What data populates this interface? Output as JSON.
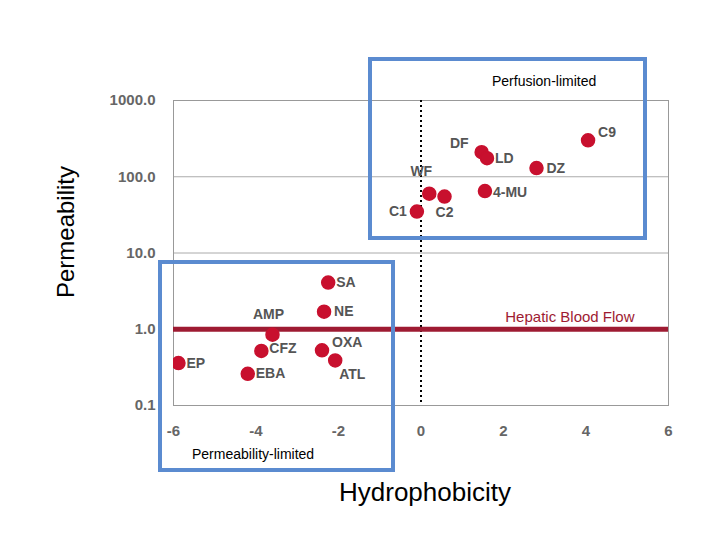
{
  "chart_data": {
    "type": "scatter",
    "x_label": "Hydrophobicity",
    "y_label": "Permeability",
    "log": "y",
    "grid": true,
    "color": "#c8102e",
    "marker": "circle",
    "labels": [
      "C9",
      "DF",
      "LD",
      "DZ",
      "WF",
      "C2",
      "4-MU",
      "C1",
      "SA",
      "NE",
      "AMP",
      "CFZ",
      "OXA",
      "ATL",
      "EP",
      "EBA"
    ],
    "x": [
      4.05,
      1.47,
      1.6,
      2.8,
      0.2,
      0.57,
      1.55,
      -0.1,
      -2.25,
      -2.35,
      -3.6,
      -3.87,
      -2.4,
      -2.08,
      -5.88,
      -4.2
    ],
    "values": [
      300,
      210,
      175,
      130,
      60,
      55,
      65,
      35,
      4.1,
      1.7,
      0.85,
      0.52,
      0.53,
      0.39,
      0.36,
      0.26
    ],
    "xlim": [
      -6,
      6
    ],
    "xticks": [
      -6,
      -4,
      -2,
      0,
      2,
      4,
      6
    ],
    "ylim": [
      0.1,
      1000
    ],
    "yticks": [
      0.1,
      {
        "value": 1,
        "label": "1.0"
      },
      {
        "value": 10,
        "label": "10.0"
      },
      {
        "value": 100,
        "label": "100.0"
      },
      {
        "value": 1000,
        "label": "1000.0"
      }
    ],
    "reference_line": {
      "value": 1,
      "label": "Hepatic Blood Flow",
      "color": "#9e1b32"
    },
    "vertical_line": {
      "value": 0,
      "line_style": "dotted",
      "color": "#000000"
    },
    "regions": [
      {
        "label": "Perfusion-limited",
        "color": "#5b8bd0"
      },
      {
        "label": "Permeability-limited",
        "color": "#5b8bd0"
      }
    ]
  }
}
